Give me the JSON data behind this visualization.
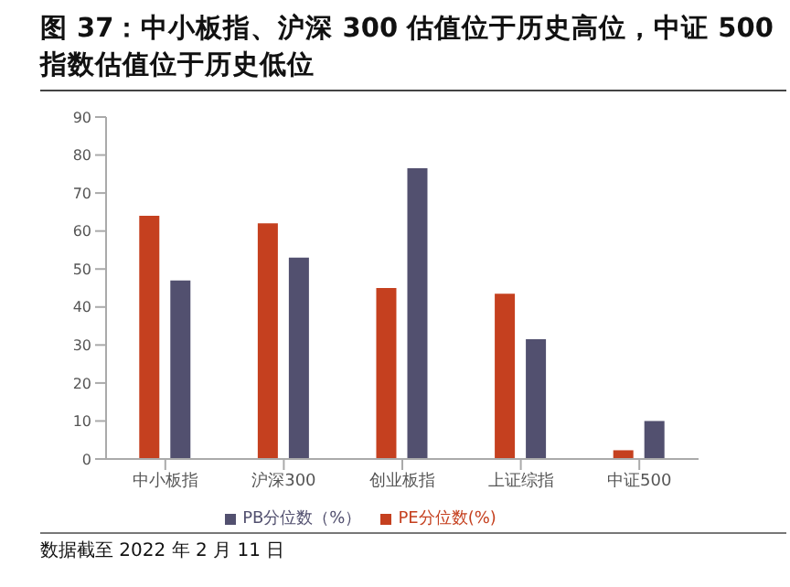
{
  "chart_data": {
    "type": "bar",
    "title": "图 37：中小板指、沪深 300 估值位于历史高位，中证 500 指数估值位于历史低位",
    "categories": [
      "中小板指",
      "沪深300",
      "创业板指",
      "上证综指",
      "中证500"
    ],
    "series": [
      {
        "name": "PE分位数(%)",
        "color": "#c5401f",
        "values": [
          64,
          62,
          45,
          43.5,
          2.3
        ]
      },
      {
        "name": "PB分位数（%）",
        "color": "#52506f",
        "values": [
          47,
          53,
          76.5,
          31.5,
          10
        ]
      }
    ],
    "ylim": [
      0,
      90
    ],
    "yticks": [
      0,
      10,
      20,
      30,
      40,
      50,
      60,
      70,
      80,
      90
    ],
    "grid": false,
    "legend": "bottom",
    "annotations": [
      "数据截至 2022 年 2 月 11 日"
    ]
  }
}
